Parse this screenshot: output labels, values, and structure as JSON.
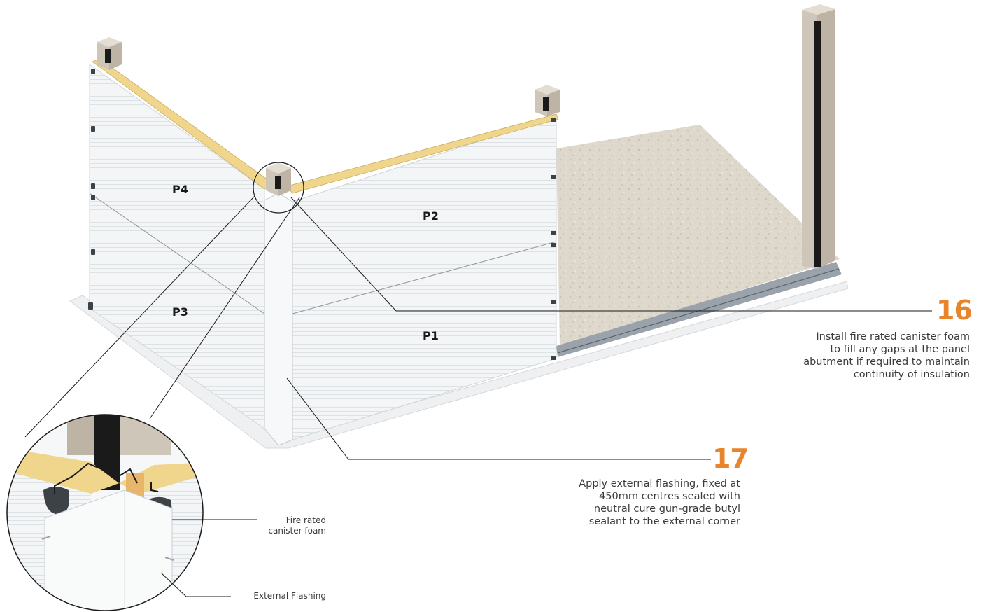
{
  "panels": {
    "p1": "P1",
    "p2": "P2",
    "p3": "P3",
    "p4": "P4"
  },
  "steps": [
    {
      "number": "16",
      "text": "Install fire rated canister foam\nto fill any gaps at the panel\nabutment if required to maintain\ncontinuity of insulation"
    },
    {
      "number": "17",
      "text": "Apply external flashing, fixed at\n450mm centres sealed with\nneutral cure gun-grade butyl\nsealant to the external corner"
    }
  ],
  "detail_callouts": {
    "foam": "Fire rated\ncanister foam",
    "flashing": "External Flashing"
  },
  "colors": {
    "accent": "#e8842c",
    "panel": "#f2f4f5",
    "insulation": "#f0d68c",
    "post": "#cfc6ba",
    "floor": "#ddd8cb"
  }
}
